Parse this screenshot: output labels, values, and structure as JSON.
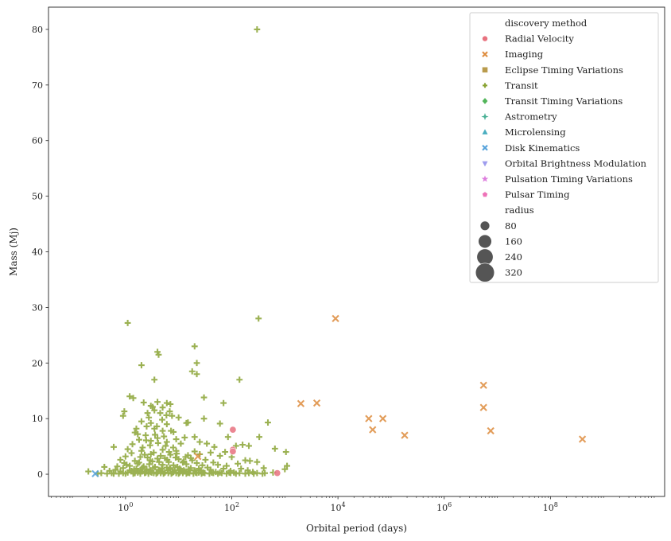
{
  "chart_data": {
    "type": "scatter",
    "title": "",
    "xlabel": "Orbital period (days)",
    "ylabel": "Mass (Mj)",
    "xscale": "log",
    "xlim": [
      0.0355,
      14125375446
    ],
    "ylim": [
      -4,
      84
    ],
    "x_ticks": [
      {
        "value": 1,
        "base": "10",
        "exp": "0"
      },
      {
        "value": 100,
        "base": "10",
        "exp": "2"
      },
      {
        "value": 10000,
        "base": "10",
        "exp": "4"
      },
      {
        "value": 1000000,
        "base": "10",
        "exp": "6"
      },
      {
        "value": 100000000,
        "base": "10",
        "exp": "8"
      }
    ],
    "y_ticks": [
      "0",
      "10",
      "20",
      "30",
      "40",
      "50",
      "60",
      "70",
      "80"
    ],
    "legend": {
      "placement": "top-right",
      "hue_title": "discovery method",
      "size_title": "radius",
      "entries": [
        {
          "label": "Radial Velocity",
          "color": "#e8727f",
          "marker": "circle"
        },
        {
          "label": "Imaging",
          "color": "#de8c3e",
          "marker": "x"
        },
        {
          "label": "Eclipse Timing Variations",
          "color": "#b99b4c",
          "marker": "square"
        },
        {
          "label": "Transit",
          "color": "#8aa434",
          "marker": "plus"
        },
        {
          "label": "Transit Timing Variations",
          "color": "#52b55a",
          "marker": "diamond"
        },
        {
          "label": "Astrometry",
          "color": "#4bb196",
          "marker": "star4"
        },
        {
          "label": "Microlensing",
          "color": "#4aaec0",
          "marker": "triangle-up"
        },
        {
          "label": "Disk Kinematics",
          "color": "#55a2db",
          "marker": "x"
        },
        {
          "label": "Orbital Brightness Modulation",
          "color": "#9e9cee",
          "marker": "triangle-down"
        },
        {
          "label": "Pulsation Timing Variations",
          "color": "#dd7ede",
          "marker": "star"
        },
        {
          "label": "Pulsar Timing",
          "color": "#ee72b8",
          "marker": "pentagon"
        }
      ],
      "sizes": [
        {
          "label": "80",
          "value": 80
        },
        {
          "label": "160",
          "value": 160
        },
        {
          "label": "240",
          "value": 240
        },
        {
          "label": "320",
          "value": 320
        }
      ]
    },
    "series": [
      {
        "name": "Transit",
        "marker": "plus",
        "color": "#8aa434",
        "points": [
          [
            300,
            80
          ],
          [
            1.1,
            27.2
          ],
          [
            320,
            28
          ],
          [
            20,
            23
          ],
          [
            4,
            22
          ],
          [
            4.2,
            21.5
          ],
          [
            22,
            20
          ],
          [
            2,
            19.6
          ],
          [
            18,
            18.5
          ],
          [
            22,
            18
          ],
          [
            140,
            17
          ],
          [
            3.5,
            17
          ],
          [
            30,
            13.8
          ],
          [
            1.2,
            14
          ],
          [
            1.4,
            13.7
          ],
          [
            4,
            13
          ],
          [
            2.2,
            12.9
          ],
          [
            5,
            12
          ],
          [
            3,
            12.3
          ],
          [
            6,
            12.8
          ],
          [
            7,
            12.6
          ],
          [
            70,
            12.8
          ],
          [
            0.95,
            11.3
          ],
          [
            0.9,
            10.5
          ],
          [
            2.6,
            11
          ],
          [
            3.5,
            11.5
          ],
          [
            4.5,
            11
          ],
          [
            7.5,
            10.5
          ],
          [
            10,
            10.2
          ],
          [
            30,
            10
          ],
          [
            480,
            9.3
          ],
          [
            2,
            9.5
          ],
          [
            3,
            9.2
          ],
          [
            6,
            9
          ],
          [
            14,
            9.2
          ],
          [
            15,
            9.3
          ],
          [
            60,
            9.1
          ],
          [
            1.6,
            8.2
          ],
          [
            2.5,
            8.6
          ],
          [
            3.5,
            8.2
          ],
          [
            5,
            7.8
          ],
          [
            8,
            7.6
          ],
          [
            1.5,
            7.5
          ],
          [
            1.7,
            7.2
          ],
          [
            2.4,
            7
          ],
          [
            4,
            6.5
          ],
          [
            9,
            6.3
          ],
          [
            13,
            6.6
          ],
          [
            20,
            6.7
          ],
          [
            85,
            6.7
          ],
          [
            330,
            6.7
          ],
          [
            1.8,
            6.2
          ],
          [
            3,
            6
          ],
          [
            6,
            5.8
          ],
          [
            11,
            5.5
          ],
          [
            25,
            5.8
          ],
          [
            34,
            5.5
          ],
          [
            47,
            4.9
          ],
          [
            120,
            5.1
          ],
          [
            160,
            5.3
          ],
          [
            210,
            5.1
          ],
          [
            650,
            4.6
          ],
          [
            1050,
            4
          ],
          [
            0.6,
            4.9
          ],
          [
            1.1,
            4.5
          ],
          [
            2,
            4.2
          ],
          [
            5,
            4.4
          ],
          [
            9,
            4.2
          ],
          [
            20,
            4.1
          ],
          [
            40,
            3.9
          ],
          [
            75,
            4
          ],
          [
            1.3,
            3.8
          ],
          [
            3,
            3.6
          ],
          [
            7,
            3.5
          ],
          [
            15,
            3.4
          ],
          [
            25,
            3.6
          ],
          [
            60,
            3.3
          ],
          [
            100,
            3.1
          ],
          [
            1,
            3.2
          ],
          [
            1.9,
            3.1
          ],
          [
            2.6,
            3
          ],
          [
            4,
            2.8
          ],
          [
            5.5,
            2.9
          ],
          [
            10,
            2.7
          ],
          [
            18,
            2.5
          ],
          [
            32,
            2.6
          ],
          [
            180,
            2.5
          ],
          [
            220,
            2.4
          ],
          [
            300,
            2.2
          ],
          [
            0.8,
            2.6
          ],
          [
            1.5,
            2.4
          ],
          [
            3.2,
            2.3
          ],
          [
            6.5,
            2.2
          ],
          [
            12,
            2.1
          ],
          [
            22,
            2
          ],
          [
            45,
            2.1
          ],
          [
            130,
            1.9
          ],
          [
            0.95,
            2
          ],
          [
            1.7,
            1.9
          ],
          [
            2.8,
            1.8
          ],
          [
            5,
            1.7
          ],
          [
            8,
            1.6
          ],
          [
            14,
            1.8
          ],
          [
            28,
            1.6
          ],
          [
            55,
            1.7
          ],
          [
            80,
            1.5
          ],
          [
            1100,
            1.5
          ],
          [
            0.4,
            1.3
          ],
          [
            0.7,
            1.4
          ],
          [
            1.2,
            1.5
          ],
          [
            2.2,
            1.4
          ],
          [
            3.6,
            1.3
          ],
          [
            6,
            1.2
          ],
          [
            9.5,
            1.3
          ],
          [
            17,
            1.1
          ],
          [
            35,
            1.2
          ],
          [
            70,
            1
          ],
          [
            150,
            1
          ],
          [
            400,
            1.1
          ],
          [
            1000,
            0.9
          ],
          [
            0.9,
            1.1
          ],
          [
            1.6,
            1
          ],
          [
            2.5,
            0.9
          ],
          [
            4.2,
            0.8
          ],
          [
            7,
            0.9
          ],
          [
            11,
            0.8
          ],
          [
            20,
            0.7
          ],
          [
            40,
            0.8
          ],
          [
            95,
            0.6
          ],
          [
            200,
            0.7
          ],
          [
            0.2,
            0.5
          ],
          [
            0.5,
            0.6
          ],
          [
            0.8,
            0.5
          ],
          [
            1.3,
            0.6
          ],
          [
            2,
            0.5
          ],
          [
            3,
            0.4
          ],
          [
            5,
            0.5
          ],
          [
            8,
            0.4
          ],
          [
            13,
            0.5
          ],
          [
            24,
            0.3
          ],
          [
            50,
            0.4
          ],
          [
            110,
            0.3
          ],
          [
            250,
            0.4
          ],
          [
            600,
            0.3
          ],
          [
            0.3,
            0.1
          ],
          [
            0.45,
            0.1
          ],
          [
            0.6,
            0.1
          ],
          [
            0.75,
            0.1
          ],
          [
            1,
            0.1
          ],
          [
            1.4,
            0.1
          ],
          [
            1.9,
            0.1
          ],
          [
            2.7,
            0.1
          ],
          [
            3.8,
            0.1
          ],
          [
            5.2,
            0.1
          ],
          [
            7.3,
            0.1
          ],
          [
            10,
            0.1
          ],
          [
            14,
            0.1
          ],
          [
            19,
            0.1
          ],
          [
            27,
            0.1
          ],
          [
            38,
            0.1
          ],
          [
            55,
            0.1
          ],
          [
            80,
            0.1
          ],
          [
            120,
            0.1
          ],
          [
            180,
            0.1
          ],
          [
            260,
            0.1
          ],
          [
            380,
            0.1
          ],
          [
            0.35,
            0.2
          ],
          [
            0.55,
            0.2
          ],
          [
            0.9,
            0.2
          ],
          [
            1.5,
            0.2
          ],
          [
            2.3,
            0.2
          ],
          [
            3.4,
            0.2
          ],
          [
            4.6,
            0.2
          ],
          [
            6.4,
            0.2
          ],
          [
            9,
            0.2
          ],
          [
            12,
            0.2
          ],
          [
            16,
            0.2
          ],
          [
            22,
            0.2
          ],
          [
            31,
            0.2
          ],
          [
            45,
            0.2
          ],
          [
            65,
            0.2
          ],
          [
            95,
            0.2
          ],
          [
            140,
            0.2
          ],
          [
            210,
            0.2
          ],
          [
            300,
            0.2
          ],
          [
            420,
            0.2
          ],
          [
            1.1,
            0.3
          ],
          [
            1.7,
            0.3
          ],
          [
            2.4,
            0.3
          ],
          [
            3.1,
            0.3
          ],
          [
            4,
            0.3
          ],
          [
            5.5,
            0.3
          ],
          [
            7.7,
            0.3
          ],
          [
            10.5,
            0.3
          ],
          [
            15,
            0.3
          ],
          [
            21,
            0.3
          ],
          [
            29,
            0.3
          ],
          [
            42,
            0.3
          ],
          [
            60,
            0.3
          ],
          [
            90,
            0.3
          ],
          [
            1.2,
            0.7
          ],
          [
            1.9,
            0.7
          ],
          [
            2.9,
            0.7
          ],
          [
            4.4,
            0.7
          ],
          [
            6.2,
            0.7
          ],
          [
            8.5,
            0.7
          ],
          [
            12.5,
            0.7
          ],
          [
            16.5,
            0.7
          ],
          [
            26,
            0.7
          ],
          [
            0.65,
            0.8
          ],
          [
            1.45,
            0.9
          ],
          [
            2.1,
            1.2
          ],
          [
            3.3,
            1.1
          ],
          [
            4.8,
            1
          ],
          [
            6.8,
            1.1
          ],
          [
            10.5,
            1
          ],
          [
            15.5,
            0.9
          ],
          [
            24,
            1
          ],
          [
            1.05,
            1.7
          ],
          [
            1.8,
            2.1
          ],
          [
            2.9,
            2.5
          ],
          [
            4.3,
            2.2
          ],
          [
            6.1,
            2.6
          ],
          [
            8.8,
            3
          ],
          [
            12.5,
            2.3
          ],
          [
            17,
            2.9
          ],
          [
            2.3,
            3.5
          ],
          [
            3.4,
            3.9
          ],
          [
            4.6,
            3.3
          ],
          [
            6.6,
            4
          ],
          [
            9.2,
            3.7
          ],
          [
            13.5,
            3.1
          ],
          [
            2.1,
            4.8
          ],
          [
            2.9,
            5.2
          ],
          [
            4.1,
            5.6
          ],
          [
            5.7,
            5.1
          ],
          [
            7.9,
            4.8
          ],
          [
            1.35,
            5.4
          ],
          [
            2.45,
            6.1
          ],
          [
            3.6,
            7.1
          ],
          [
            5.3,
            6.8
          ],
          [
            7.2,
            7.8
          ],
          [
            3.9,
            8.6
          ],
          [
            4.9,
            9.8
          ],
          [
            5.9,
            10.6
          ],
          [
            6.8,
            11.3
          ],
          [
            2.75,
            10.2
          ],
          [
            3.25,
            12.1
          ]
        ]
      },
      {
        "name": "Imaging",
        "marker": "x",
        "color": "#de8c3e",
        "points": [
          [
            9000,
            28
          ],
          [
            2000,
            12.7
          ],
          [
            4000,
            12.8
          ],
          [
            38000,
            10
          ],
          [
            70000,
            10
          ],
          [
            45000,
            8
          ],
          [
            180000,
            7
          ],
          [
            5500000,
            16
          ],
          [
            5500000,
            12
          ],
          [
            7500000,
            7.8
          ],
          [
            400000000,
            6.3
          ],
          [
            23,
            3.2
          ]
        ]
      },
      {
        "name": "Radial Velocity",
        "marker": "circle",
        "color": "#e8727f",
        "points": [
          [
            105,
            8
          ],
          [
            105,
            4.4
          ],
          [
            105,
            4.1
          ],
          [
            720,
            0.2
          ]
        ]
      },
      {
        "name": "Disk Kinematics",
        "marker": "x",
        "color": "#55a2db",
        "points": [
          [
            0.27,
            0.1
          ]
        ]
      }
    ]
  }
}
